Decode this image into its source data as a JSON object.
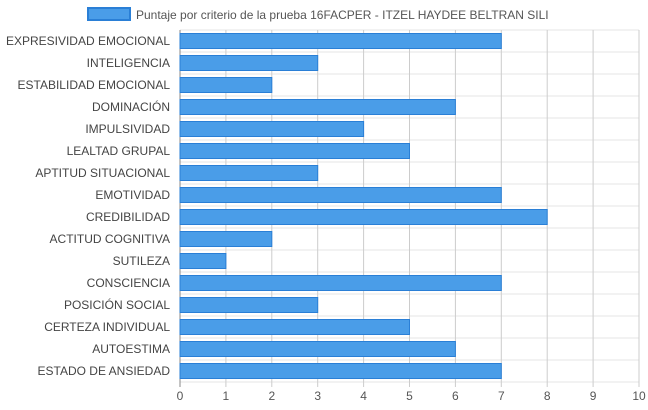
{
  "chart_data": {
    "type": "bar",
    "orientation": "horizontal",
    "title": "",
    "xlabel": "",
    "ylabel": "",
    "categories": [
      "EXPRESIVIDAD EMOCIONAL",
      "INTELIGENCIA",
      "ESTABILIDAD EMOCIONAL",
      "DOMINACIÓN",
      "IMPULSIVIDAD",
      "LEALTAD GRUPAL",
      "APTITUD SITUACIONAL",
      "EMOTIVIDAD",
      "CREDIBILIDAD",
      "ACTITUD COGNITIVA",
      "SUTILEZA",
      "CONSCIENCIA",
      "POSICIÓN SOCIAL",
      "CERTEZA INDIVIDUAL",
      "AUTOESTIMA",
      "ESTADO DE ANSIEDAD"
    ],
    "series": [
      {
        "name": "Puntaje por criterio de la prueba 16FACPER - ITZEL HAYDEE BELTRAN SILI",
        "color": "#4a9de8",
        "border_color": "#2a7fd6",
        "values": [
          7,
          3,
          2,
          6,
          4,
          5,
          3,
          7,
          8,
          2,
          1,
          7,
          3,
          5,
          6,
          7
        ]
      }
    ],
    "xlim": [
      0,
      10
    ],
    "xticks": [
      "0",
      "1",
      "2",
      "3",
      "4",
      "5",
      "6",
      "7",
      "8",
      "9",
      "10"
    ],
    "grid": true,
    "legend_position": "top"
  }
}
